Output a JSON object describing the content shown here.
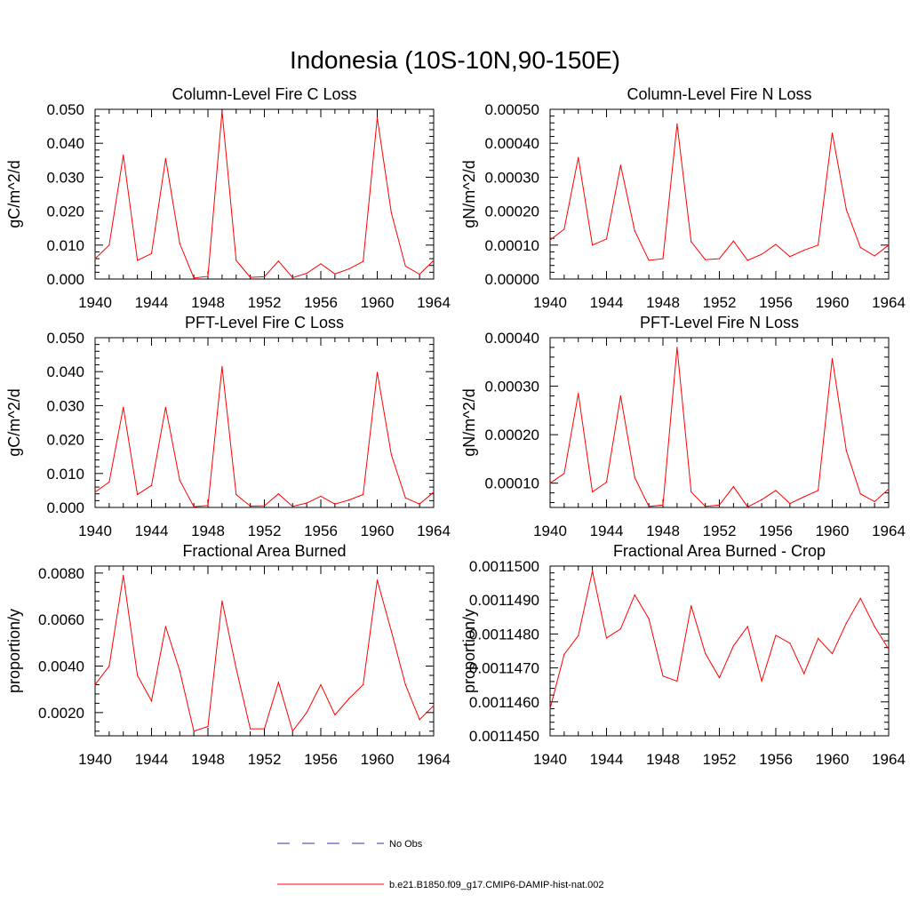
{
  "figure": {
    "title": "Indonesia (10S-10N,90-150E)",
    "colors": {
      "model": "#ff0000",
      "obs": "#3333aa",
      "axis": "#000000"
    },
    "legend": {
      "entries": [
        {
          "label": "No Obs",
          "style": "dashed",
          "color": "#3333aa"
        },
        {
          "label": "b.e21.B1850.f09_g17.CMIP6-DAMIP-hist-nat.002",
          "style": "solid",
          "color": "#ff0000"
        }
      ]
    }
  },
  "chart_data": [
    {
      "type": "line",
      "title": "Column-Level Fire C Loss",
      "ylabel": "gC/m^2/d",
      "xlim": [
        1940,
        1964
      ],
      "ylim": [
        0,
        0.05
      ],
      "x_ticks": [
        1940,
        1944,
        1948,
        1952,
        1956,
        1960,
        1964
      ],
      "x_tick_labels": [
        "1940",
        "1944",
        "1948",
        "1952",
        "1956",
        "1960",
        "1964"
      ],
      "y_ticks": [
        0,
        0.01,
        0.02,
        0.03,
        0.04,
        0.05
      ],
      "y_tick_labels": [
        "0.000",
        "0.010",
        "0.020",
        "0.030",
        "0.040",
        "0.050"
      ],
      "x": [
        1940,
        1941,
        1942,
        1943,
        1944,
        1945,
        1946,
        1947,
        1948,
        1949,
        1950,
        1951,
        1952,
        1953,
        1954,
        1955,
        1956,
        1957,
        1958,
        1959,
        1960,
        1961,
        1962,
        1963,
        1964
      ],
      "series": [
        {
          "name": "b.e21.B1850.f09_g17.CMIP6-DAMIP-hist-nat.002",
          "values": [
            0.006,
            0.01,
            0.0365,
            0.0055,
            0.0075,
            0.0355,
            0.0105,
            0.0003,
            0.0008,
            0.0495,
            0.0055,
            0.0005,
            0.0007,
            0.0053,
            0.0004,
            0.0017,
            0.0045,
            0.0015,
            0.003,
            0.0052,
            0.0475,
            0.0195,
            0.0038,
            0.0014,
            0.0055
          ]
        }
      ]
    },
    {
      "type": "line",
      "title": "Column-Level Fire N Loss",
      "ylabel": "gN/m^2/d",
      "xlim": [
        1940,
        1964
      ],
      "ylim": [
        0,
        0.0005
      ],
      "x_ticks": [
        1940,
        1944,
        1948,
        1952,
        1956,
        1960,
        1964
      ],
      "x_tick_labels": [
        "1940",
        "1944",
        "1948",
        "1952",
        "1956",
        "1960",
        "1964"
      ],
      "y_ticks": [
        0,
        0.0001,
        0.0002,
        0.0003,
        0.0004,
        0.0005
      ],
      "y_tick_labels": [
        "0.00000",
        "0.00010",
        "0.00020",
        "0.00030",
        "0.00040",
        "0.00050"
      ],
      "x": [
        1940,
        1941,
        1942,
        1943,
        1944,
        1945,
        1946,
        1947,
        1948,
        1949,
        1950,
        1951,
        1952,
        1953,
        1954,
        1955,
        1956,
        1957,
        1958,
        1959,
        1960,
        1961,
        1962,
        1963,
        1964
      ],
      "series": [
        {
          "name": "b.e21.B1850.f09_g17.CMIP6-DAMIP-hist-nat.002",
          "values": [
            0.000115,
            0.000147,
            0.000358,
            0.0001,
            0.000118,
            0.000335,
            0.000142,
            5.5e-05,
            6e-05,
            0.000457,
            0.00011,
            5.7e-05,
            6e-05,
            0.000112,
            5.5e-05,
            7.3e-05,
            0.000102,
            6.6e-05,
            8.5e-05,
            0.0001,
            0.00043,
            0.000205,
            9.3e-05,
            6.8e-05,
            0.0001
          ]
        }
      ]
    },
    {
      "type": "line",
      "title": "PFT-Level Fire C Loss",
      "ylabel": "gC/m^2/d",
      "xlim": [
        1940,
        1964
      ],
      "ylim": [
        0,
        0.05
      ],
      "x_ticks": [
        1940,
        1944,
        1948,
        1952,
        1956,
        1960,
        1964
      ],
      "x_tick_labels": [
        "1940",
        "1944",
        "1948",
        "1952",
        "1956",
        "1960",
        "1964"
      ],
      "y_ticks": [
        0,
        0.01,
        0.02,
        0.03,
        0.04,
        0.05
      ],
      "y_tick_labels": [
        "0.000",
        "0.010",
        "0.020",
        "0.030",
        "0.040",
        "0.050"
      ],
      "x": [
        1940,
        1941,
        1942,
        1943,
        1944,
        1945,
        1946,
        1947,
        1948,
        1949,
        1950,
        1951,
        1952,
        1953,
        1954,
        1955,
        1956,
        1957,
        1958,
        1959,
        1960,
        1961,
        1962,
        1963,
        1964
      ],
      "series": [
        {
          "name": "b.e21.B1850.f09_g17.CMIP6-DAMIP-hist-nat.002",
          "values": [
            0.0045,
            0.0075,
            0.0295,
            0.0038,
            0.0065,
            0.0295,
            0.008,
            0.0002,
            0.0006,
            0.0415,
            0.0038,
            0.0004,
            0.0005,
            0.004,
            0.0003,
            0.0013,
            0.0033,
            0.001,
            0.0022,
            0.0038,
            0.0398,
            0.0155,
            0.0028,
            0.001,
            0.0045
          ]
        }
      ]
    },
    {
      "type": "line",
      "title": "PFT-Level Fire N Loss",
      "ylabel": "gN/m^2/d",
      "xlim": [
        1940,
        1964
      ],
      "ylim": [
        5e-05,
        0.0004
      ],
      "x_ticks": [
        1940,
        1944,
        1948,
        1952,
        1956,
        1960,
        1964
      ],
      "x_tick_labels": [
        "1940",
        "1944",
        "1948",
        "1952",
        "1956",
        "1960",
        "1964"
      ],
      "y_ticks": [
        0.0001,
        0.0002,
        0.0003,
        0.0004
      ],
      "y_tick_labels": [
        "0.00010",
        "0.00020",
        "0.00030",
        "0.00040"
      ],
      "x": [
        1940,
        1941,
        1942,
        1943,
        1944,
        1945,
        1946,
        1947,
        1948,
        1949,
        1950,
        1951,
        1952,
        1953,
        1954,
        1955,
        1956,
        1957,
        1958,
        1959,
        1960,
        1961,
        1962,
        1963,
        1964
      ],
      "series": [
        {
          "name": "b.e21.B1850.f09_g17.CMIP6-DAMIP-hist-nat.002",
          "values": [
            0.0001,
            0.00012,
            0.000285,
            8.2e-05,
            0.000102,
            0.00028,
            0.000112,
            5.2e-05,
            5.5e-05,
            0.00038,
            8.2e-05,
            5.2e-05,
            5.5e-05,
            9.3e-05,
            5.1e-05,
            6.6e-05,
            8.5e-05,
            5.8e-05,
            7.2e-05,
            8.5e-05,
            0.000357,
            0.000167,
            7.8e-05,
            6.2e-05,
            8.8e-05
          ]
        }
      ]
    },
    {
      "type": "line",
      "title": "Fractional Area Burned",
      "ylabel": "proportion/y",
      "xlim": [
        1940,
        1964
      ],
      "ylim": [
        0.001,
        0.0083
      ],
      "x_ticks": [
        1940,
        1944,
        1948,
        1952,
        1956,
        1960,
        1964
      ],
      "x_tick_labels": [
        "1940",
        "1944",
        "1948",
        "1952",
        "1956",
        "1960",
        "1964"
      ],
      "y_ticks": [
        0.002,
        0.004,
        0.006,
        0.008
      ],
      "y_tick_labels": [
        "0.0020",
        "0.0040",
        "0.0060",
        "0.0080"
      ],
      "x": [
        1940,
        1941,
        1942,
        1943,
        1944,
        1945,
        1946,
        1947,
        1948,
        1949,
        1950,
        1951,
        1952,
        1953,
        1954,
        1955,
        1956,
        1957,
        1958,
        1959,
        1960,
        1961,
        1962,
        1963,
        1964
      ],
      "series": [
        {
          "name": "b.e21.B1850.f09_g17.CMIP6-DAMIP-hist-nat.002",
          "values": [
            0.0032,
            0.004,
            0.0079,
            0.0036,
            0.0025,
            0.0057,
            0.0038,
            0.0012,
            0.0014,
            0.0068,
            0.0039,
            0.0013,
            0.0013,
            0.0033,
            0.0012,
            0.002,
            0.0032,
            0.0019,
            0.0026,
            0.0032,
            0.0077,
            0.0055,
            0.0032,
            0.0017,
            0.0023
          ]
        }
      ]
    },
    {
      "type": "line",
      "title": "Fractional Area Burned - Crop",
      "ylabel": "proportion/y",
      "xlim": [
        1940,
        1964
      ],
      "ylim": [
        0.001145,
        0.00115
      ],
      "x_ticks": [
        1940,
        1944,
        1948,
        1952,
        1956,
        1960,
        1964
      ],
      "x_tick_labels": [
        "1940",
        "1944",
        "1948",
        "1952",
        "1956",
        "1960",
        "1964"
      ],
      "y_ticks": [
        0.001145,
        0.001146,
        0.001147,
        0.001148,
        0.001149,
        0.00115
      ],
      "y_tick_labels": [
        "0.0011450",
        "0.0011460",
        "0.0011470",
        "0.0011480",
        "0.0011490",
        "0.0011500"
      ],
      "x": [
        1940,
        1941,
        1942,
        1943,
        1944,
        1945,
        1946,
        1947,
        1948,
        1949,
        1950,
        1951,
        1952,
        1953,
        1954,
        1955,
        1956,
        1957,
        1958,
        1959,
        1960,
        1961,
        1962,
        1963,
        1964
      ],
      "series": [
        {
          "name": "b.e21.B1850.f09_g17.CMIP6-DAMIP-hist-nat.002",
          "values": [
            0.0011458,
            0.0011474,
            0.00114795,
            0.00114985,
            0.00114788,
            0.00114815,
            0.00114915,
            0.00114845,
            0.00114676,
            0.00114661,
            0.00114883,
            0.00114743,
            0.00114671,
            0.00114765,
            0.00114822,
            0.00114661,
            0.00114796,
            0.00114773,
            0.00114683,
            0.00114787,
            0.00114742,
            0.00114832,
            0.00114905,
            0.00114822,
            0.00114755
          ]
        }
      ]
    }
  ]
}
